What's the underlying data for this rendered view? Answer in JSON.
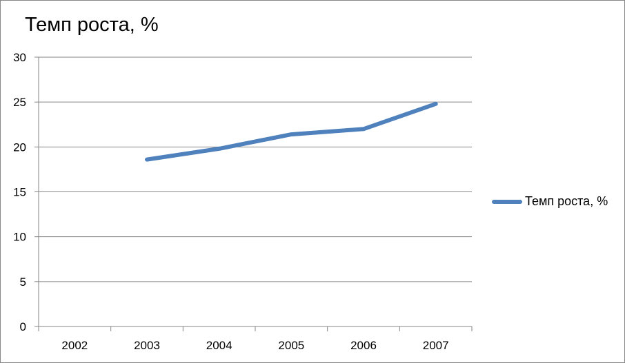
{
  "chart_data": {
    "type": "line",
    "title": "Темп роста, %",
    "categories": [
      "2002",
      "2003",
      "2004",
      "2005",
      "2006",
      "2007"
    ],
    "series": [
      {
        "name": "Темп роста, %",
        "values": [
          null,
          18.6,
          19.8,
          21.4,
          22.0,
          24.8
        ]
      }
    ],
    "ylim": [
      0,
      30
    ],
    "yticks": [
      0,
      5,
      10,
      15,
      20,
      25,
      30
    ],
    "xlabel": "",
    "ylabel": "",
    "grid": true,
    "legend_position": "right"
  },
  "colors": {
    "series_line": "#4f81bd",
    "gridline": "#868686",
    "axis": "#868686",
    "text": "#000000"
  }
}
